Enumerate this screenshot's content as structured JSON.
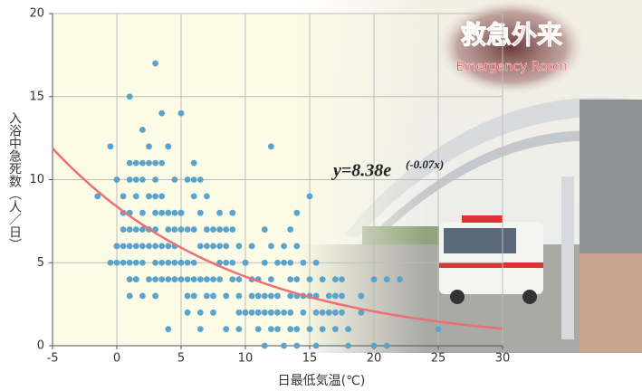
{
  "chart_data": {
    "type": "scatter",
    "x_label": "日最低気温(℃)",
    "y_label": "入浴中急死数（人／日）",
    "xlim": [
      -5,
      30
    ],
    "xticks": [
      -5,
      0,
      5,
      10,
      15,
      20,
      25,
      30
    ],
    "ylim": [
      0,
      20
    ],
    "yticks": [
      0,
      5,
      10,
      15,
      20
    ],
    "grid": true,
    "color": "#5ba3cb",
    "x": [
      -1.5,
      -0.5,
      -0.5,
      0,
      0,
      0,
      0,
      0,
      0.5,
      0.5,
      0.5,
      0.5,
      0.5,
      1,
      1,
      1,
      1,
      1,
      1,
      1,
      1,
      1,
      1,
      1.5,
      1.5,
      1.5,
      1.5,
      1.5,
      1.5,
      1.5,
      1.5,
      2,
      2,
      2,
      2,
      2,
      2,
      2,
      2,
      2.5,
      2.5,
      2.5,
      2.5,
      2.5,
      2.5,
      2.5,
      3,
      3,
      3,
      3,
      3,
      3,
      3,
      3,
      3,
      3,
      3.5,
      3.5,
      3.5,
      3.5,
      3.5,
      3.5,
      3.5,
      4,
      4,
      4,
      4,
      4,
      4,
      4,
      4,
      4.5,
      4.5,
      4.5,
      4.5,
      4.5,
      4.5,
      4.5,
      5,
      5,
      5,
      5,
      5,
      5,
      5.5,
      5.5,
      5.5,
      5.5,
      5.5,
      5.5,
      6,
      6,
      6,
      6,
      6,
      6,
      6,
      6.5,
      6.5,
      6.5,
      6.5,
      6.5,
      6.5,
      7,
      7,
      7,
      7,
      7,
      7,
      7.5,
      7.5,
      7.5,
      7.5,
      7.5,
      8,
      8,
      8,
      8,
      8,
      8.5,
      8.5,
      8.5,
      8.5,
      8.5,
      9,
      9,
      9,
      9,
      9.5,
      9.5,
      9.5,
      9.5,
      9.5,
      10,
      10,
      10,
      10,
      10.5,
      10.5,
      10.5,
      10.5,
      11,
      11,
      11,
      11,
      11,
      11.5,
      11.5,
      11.5,
      11.5,
      11.5,
      12,
      12,
      12,
      12,
      12,
      12,
      12,
      12.5,
      12.5,
      12.5,
      12.5,
      13,
      13,
      13,
      13,
      13.5,
      13.5,
      13.5,
      13.5,
      13.5,
      13.5,
      14,
      14,
      14,
      14,
      14,
      14,
      14.5,
      14.5,
      14.5,
      15,
      15,
      15,
      15,
      15.5,
      15.5,
      15.5,
      15.5,
      16,
      16,
      16,
      16.5,
      16.5,
      16.5,
      17,
      17,
      17,
      17,
      17.5,
      17.5,
      17.5,
      18,
      18,
      19,
      19,
      20,
      20,
      21,
      21,
      22,
      25
    ],
    "values": [
      9,
      5,
      12,
      10,
      10,
      6,
      5,
      6,
      6,
      7,
      8,
      5,
      9,
      15,
      11,
      10,
      8,
      7,
      6,
      5,
      4,
      4,
      3,
      11,
      10,
      9,
      7,
      6,
      5,
      4,
      4,
      13,
      11,
      10,
      8,
      7,
      6,
      5,
      3,
      12,
      11,
      9,
      9,
      7,
      6,
      4,
      17,
      11,
      10,
      9,
      8,
      7,
      6,
      5,
      4,
      3,
      14,
      11,
      9,
      8,
      6,
      5,
      4,
      12,
      12,
      8,
      7,
      6,
      5,
      4,
      1,
      10,
      8,
      7,
      6,
      5,
      4,
      4,
      14,
      8,
      8,
      7,
      5,
      4,
      10,
      7,
      5,
      4,
      3,
      2,
      11,
      10,
      9,
      7,
      5,
      4,
      3,
      10,
      8,
      6,
      4,
      2,
      1,
      9,
      7,
      6,
      4,
      4,
      3,
      7,
      6,
      4,
      3,
      2,
      8,
      7,
      6,
      5,
      4,
      7,
      6,
      5,
      3,
      1,
      8,
      7,
      5,
      4,
      6,
      4,
      3,
      2,
      1,
      5,
      5,
      2,
      2,
      6,
      4,
      3,
      2,
      4,
      3,
      2,
      2,
      1,
      7,
      5,
      3,
      2,
      0,
      12,
      6,
      4,
      3,
      2,
      2,
      1,
      5,
      3,
      2,
      1,
      6,
      5,
      2,
      0,
      7,
      5,
      4,
      3,
      2,
      1,
      8,
      6,
      4,
      3,
      1,
      0,
      5,
      3,
      2,
      9,
      4,
      3,
      1,
      5,
      3,
      2,
      0,
      4,
      2,
      1,
      3,
      2,
      2,
      4,
      3,
      2,
      1,
      4,
      3,
      2,
      0,
      1,
      3,
      2,
      4,
      0,
      4,
      0,
      4,
      1
    ],
    "fit": {
      "a": 8.38,
      "b": -0.07,
      "color": "#ee6f73"
    },
    "fit_label": "y=8.38e",
    "fit_label_exponent": "(-0.07x)"
  },
  "image_text": {
    "sign": "救急外来",
    "sign_sub": "Emergency Room"
  }
}
